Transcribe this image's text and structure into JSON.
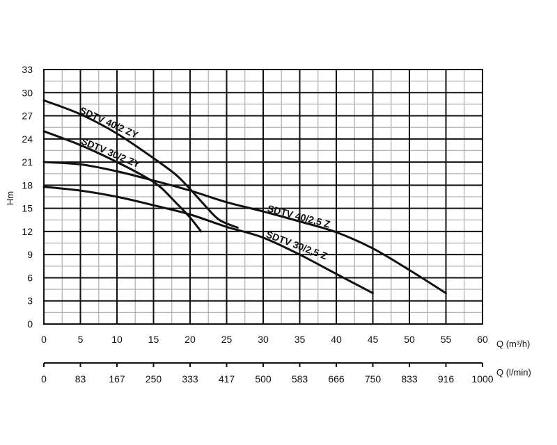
{
  "chart_data": {
    "type": "line",
    "ylabel": "Hm",
    "xlabel": "Q (m³/h)",
    "x2label": "Q (l/min)",
    "xlim": [
      0,
      60
    ],
    "ylim": [
      0,
      33
    ],
    "x_ticks": [
      0,
      5,
      10,
      15,
      20,
      25,
      30,
      35,
      40,
      45,
      50,
      55,
      60
    ],
    "y_ticks": [
      0,
      3,
      6,
      9,
      12,
      15,
      18,
      21,
      24,
      27,
      30,
      33
    ],
    "x2_ticks": [
      "0",
      "83",
      "167",
      "250",
      "333",
      "417",
      "500",
      "583",
      "666",
      "750",
      "833",
      "916",
      "1000"
    ],
    "grid": true,
    "series": [
      {
        "name": "SDTV 40/2 ZY",
        "x": [
          0,
          5,
          10,
          15,
          18,
          20,
          22,
          24,
          26.5
        ],
        "y": [
          29,
          27.2,
          24.7,
          21.5,
          19.4,
          17.5,
          15.4,
          13.5,
          12.5
        ]
      },
      {
        "name": "SDTV 30/2 ZY",
        "x": [
          0,
          5,
          10,
          14,
          16,
          18,
          20,
          21.5
        ],
        "y": [
          25,
          23.2,
          21,
          19,
          17.7,
          15.8,
          13.8,
          12
        ]
      },
      {
        "name": "SDTV 40/2,5 Z",
        "x": [
          0,
          5,
          10,
          15,
          20,
          25,
          30,
          35,
          40,
          45,
          50,
          55
        ],
        "y": [
          21,
          20.7,
          19.8,
          18.6,
          17.3,
          15.8,
          14.6,
          13.3,
          11.9,
          9.8,
          7,
          4
        ]
      },
      {
        "name": "SDTV 30/2,5 Z",
        "x": [
          0,
          5,
          10,
          15,
          20,
          25,
          30,
          35,
          40,
          45
        ],
        "y": [
          17.8,
          17.3,
          16.5,
          15.4,
          14.2,
          12.6,
          11.2,
          9,
          6.5,
          4
        ]
      }
    ]
  }
}
